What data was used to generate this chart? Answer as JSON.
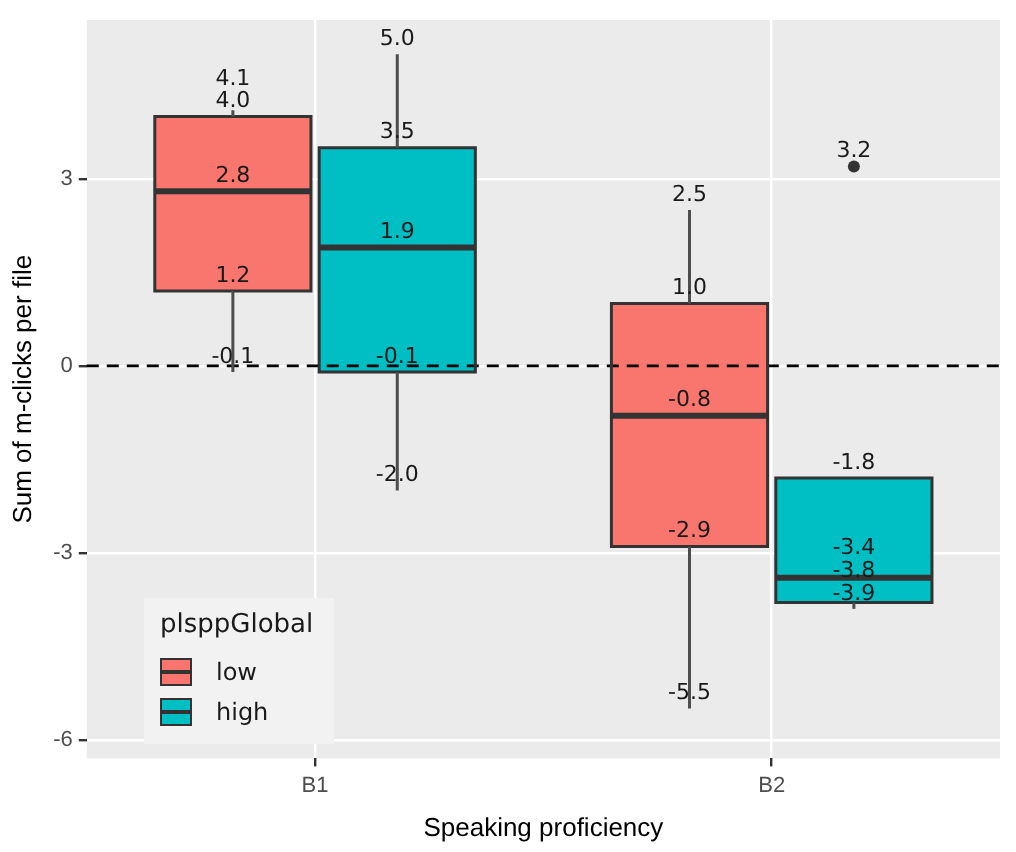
{
  "chart_data": {
    "type": "box",
    "xlabel": "Speaking proficiency",
    "ylabel": "Sum of m-clicks per file",
    "legend_title": "plsppGlobal",
    "categories": [
      "B1",
      "B2"
    ],
    "series": [
      {
        "name": "low",
        "color": "#f8766d",
        "value_labels": [
          [
            "-0.1",
            "1.2",
            "2.8",
            "4.0",
            "4.1"
          ],
          [
            "-5.5",
            "-2.9",
            "-0.8",
            "1.0",
            "2.5"
          ]
        ],
        "boxes": [
          {
            "low": -0.1,
            "q1": 1.2,
            "median": 2.8,
            "q3": 4.0,
            "high": 4.1
          },
          {
            "low": -5.5,
            "q1": -2.9,
            "median": -0.8,
            "q3": 1.0,
            "high": 2.5
          }
        ]
      },
      {
        "name": "high",
        "color": "#00bfc4",
        "value_labels": [
          [
            "-2.0",
            "-0.1",
            "1.9",
            "3.5",
            "5.0"
          ],
          [
            "-3.9",
            "-3.8",
            "-3.4",
            "-1.8",
            null,
            "3.2"
          ]
        ],
        "boxes": [
          {
            "low": -2.0,
            "q1": -0.1,
            "median": 1.9,
            "q3": 3.5,
            "high": 5.0
          },
          {
            "low": -3.9,
            "q1": -3.8,
            "median": -3.4,
            "q3": -1.8,
            "high": -1.8,
            "outliers": [
              3.2
            ]
          }
        ]
      }
    ],
    "ylim": [
      -6.3,
      5.55
    ],
    "yticks": [
      -6,
      -3,
      0,
      3
    ],
    "ref_lines": [
      {
        "axis": "y",
        "value": 0,
        "line_style": "dashed"
      }
    ],
    "grid": true,
    "legend": "bottom left"
  }
}
